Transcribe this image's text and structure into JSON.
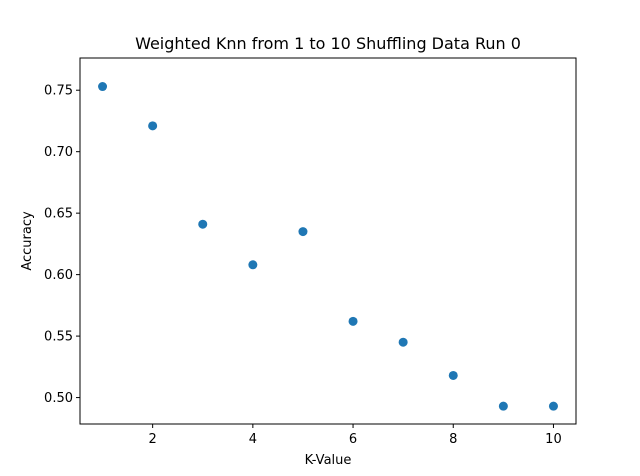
{
  "chart_data": {
    "type": "scatter",
    "title": "Weighted Knn from 1 to 10 Shuffling Data Run 0",
    "xlabel": "K-Value",
    "ylabel": "Accuracy",
    "xlim": [
      0.55,
      10.45
    ],
    "ylim": [
      0.4785,
      0.7762
    ],
    "xticks": [
      2,
      4,
      6,
      8,
      10
    ],
    "yticks": [
      0.5,
      0.55,
      0.6,
      0.65,
      0.7,
      0.75
    ],
    "xtick_labels": [
      "2",
      "4",
      "6",
      "8",
      "10"
    ],
    "ytick_labels": [
      "0.50",
      "0.55",
      "0.60",
      "0.65",
      "0.70",
      "0.75"
    ],
    "grid": false,
    "legend": "none",
    "series": [
      {
        "color": "#1f77b4",
        "x": [
          1,
          2,
          3,
          4,
          5,
          6,
          7,
          8,
          9,
          10
        ],
        "y": [
          0.753,
          0.721,
          0.641,
          0.608,
          0.635,
          0.562,
          0.545,
          0.518,
          0.493,
          0.493
        ]
      }
    ]
  }
}
